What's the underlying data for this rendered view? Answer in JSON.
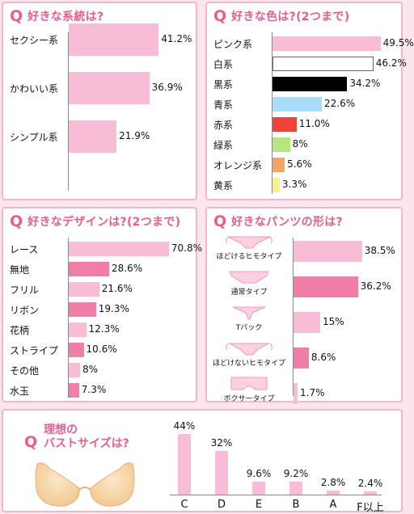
{
  "colors": {
    "pink": "#f9bcd7",
    "hotpink": "#ef7fa9",
    "white": "#ffffff",
    "black": "#000000",
    "lightblue": "#a9dcf6",
    "red": "#f2433b",
    "green": "#b4e67a",
    "orange": "#f6a55e",
    "yellow": "#f7f084",
    "accent": "#ee5c8f"
  },
  "q_mark": "Q",
  "chart_data": [
    {
      "type": "bar",
      "orientation": "horizontal",
      "title": "好きな系統は?",
      "categories": [
        "セクシー系",
        "かわいい系",
        "シンプル系"
      ],
      "values": [
        41.2,
        36.9,
        21.9
      ],
      "labels": [
        "41.2%",
        "36.9%",
        "21.9%"
      ],
      "colors": [
        "#f9bcd7",
        "#f9bcd7",
        "#f9bcd7"
      ]
    },
    {
      "type": "bar",
      "orientation": "horizontal",
      "title": "好きな色は?(2つまで)",
      "categories": [
        "ピンク系",
        "白系",
        "黒系",
        "青系",
        "赤系",
        "緑系",
        "オレンジ系",
        "黄系"
      ],
      "values": [
        49.5,
        46.2,
        34.2,
        22.6,
        11.0,
        8,
        5.6,
        3.3
      ],
      "labels": [
        "49.5%",
        "46.2%",
        "34.2%",
        "22.6%",
        "11.0%",
        "8%",
        "5.6%",
        "3.3%"
      ],
      "colors": [
        "#f9bcd7",
        "#ffffff",
        "#000000",
        "#a9dcf6",
        "#f2433b",
        "#b4e67a",
        "#f6a55e",
        "#f7f084"
      ]
    },
    {
      "type": "bar",
      "orientation": "horizontal",
      "title": "好きなデザインは?(2つまで)",
      "categories": [
        "レース",
        "無地",
        "フリル",
        "リボン",
        "花柄",
        "ストライプ",
        "その他",
        "水玉"
      ],
      "values": [
        70.8,
        28.6,
        21.6,
        19.3,
        12.3,
        10.6,
        8,
        7.3
      ],
      "labels": [
        "70.8%",
        "28.6%",
        "21.6%",
        "19.3%",
        "12.3%",
        "10.6%",
        "8%",
        "7.3%"
      ],
      "colors": [
        "#f9bcd7",
        "#ef7fa9",
        "#f9bcd7",
        "#ef7fa9",
        "#f9bcd7",
        "#ef7fa9",
        "#f9bcd7",
        "#ef7fa9"
      ]
    },
    {
      "type": "bar",
      "orientation": "horizontal",
      "title": "好きなパンツの形は?",
      "categories": [
        "ほどけるヒモタイプ",
        "通常タイプ",
        "Tバック",
        "ほどけないヒモタイプ",
        "ボクサータイプ"
      ],
      "values": [
        38.5,
        36.2,
        15,
        8.6,
        1.7
      ],
      "labels": [
        "38.5%",
        "36.2%",
        "15%",
        "8.6%",
        "1.7%"
      ],
      "colors": [
        "#f9bcd7",
        "#ef7fa9",
        "#f9bcd7",
        "#ef7fa9",
        "#f9bcd7"
      ]
    },
    {
      "type": "bar",
      "orientation": "vertical",
      "title": "理想のバストサイズは?",
      "categories": [
        "C",
        "D",
        "E",
        "B",
        "A",
        "F以上"
      ],
      "values": [
        44,
        32,
        9.6,
        9.2,
        2.8,
        2.4
      ],
      "labels": [
        "44%",
        "32%",
        "9.6%",
        "9.2%",
        "2.8%",
        "2.4%"
      ],
      "colors": [
        "#f9bcd7",
        "#f9bcd7",
        "#f9bcd7",
        "#f9bcd7",
        "#f9bcd7",
        "#f9bcd7"
      ]
    }
  ],
  "q5_title_lines": [
    "理想の",
    "バストサイズは?"
  ],
  "icons": {
    "panties": "panties-icon",
    "bra": "bra-icon"
  }
}
